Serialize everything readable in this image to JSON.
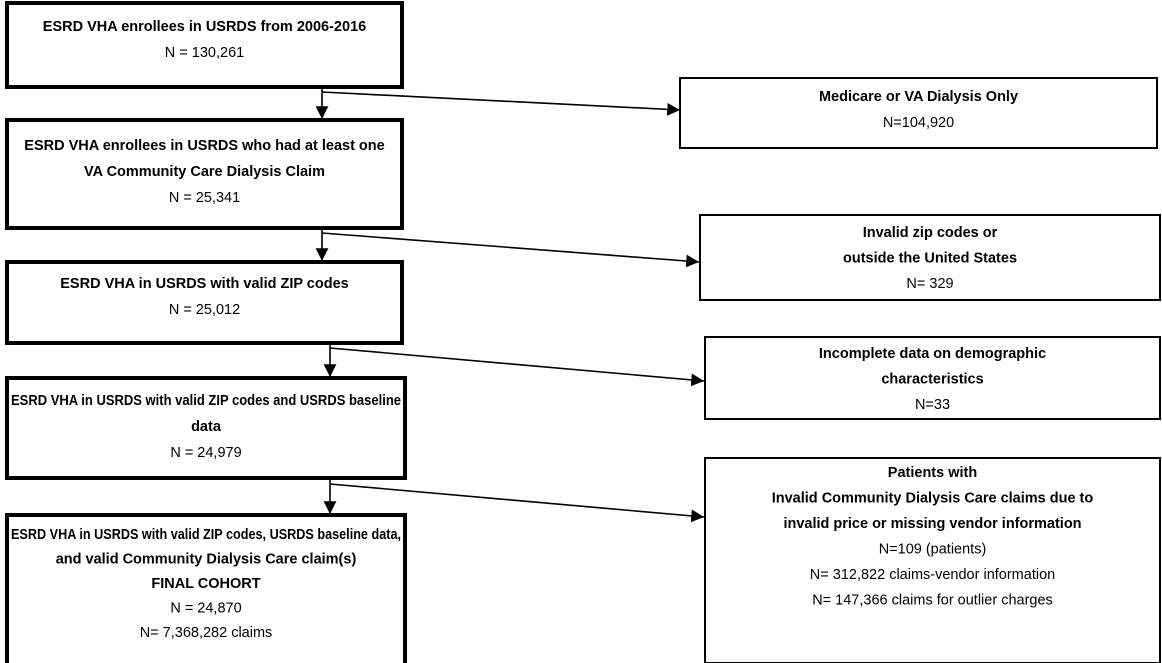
{
  "main_boxes": [
    {
      "bold_lines": [
        "ESRD VHA enrollees in USRDS from 2006-2016"
      ],
      "regular_lines": [
        "N = 130,261"
      ]
    },
    {
      "bold_lines": [
        "ESRD VHA enrollees in USRDS who had at least one",
        "VA Community Care Dialysis Claim"
      ],
      "regular_lines": [
        "N = 25,341"
      ]
    },
    {
      "bold_lines": [
        "ESRD VHA in USRDS with valid ZIP codes"
      ],
      "regular_lines": [
        "N = 25,012"
      ]
    },
    {
      "bold_lines": [
        "ESRD VHA in USRDS with valid ZIP codes and USRDS baseline",
        "data"
      ],
      "regular_lines": [
        "N = 24,979"
      ]
    },
    {
      "bold_lines": [
        "ESRD VHA in USRDS with valid ZIP codes, USRDS baseline data,",
        "and valid Community Dialysis Care claim(s)",
        "FINAL COHORT"
      ],
      "regular_lines": [
        "N = 24,870",
        "N= 7,368,282 claims"
      ]
    }
  ],
  "exclusion_boxes": [
    {
      "bold_lines": [
        "Medicare or VA Dialysis Only"
      ],
      "regular_lines": [
        "N=104,920"
      ]
    },
    {
      "bold_lines": [
        "Invalid zip codes or",
        "outside the United States"
      ],
      "regular_lines": [
        "N= 329"
      ]
    },
    {
      "bold_lines": [
        "Incomplete data on demographic",
        "characteristics"
      ],
      "regular_lines": [
        "N=33"
      ]
    },
    {
      "bold_lines": [
        "Patients with",
        "Invalid Community Dialysis Care claims due to",
        "invalid price or missing vendor information"
      ],
      "regular_lines": [
        "N=109 (patients)",
        "N= 312,822 claims-vendor information",
        "N= 147,366 claims for outlier charges"
      ]
    }
  ]
}
